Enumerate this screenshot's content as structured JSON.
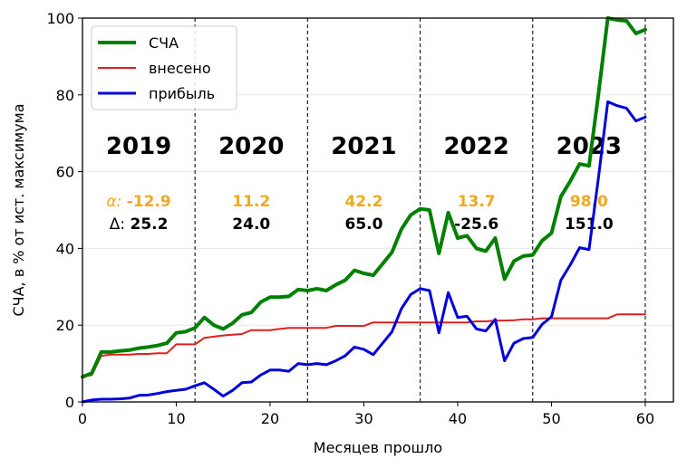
{
  "chart_data": {
    "type": "line",
    "title": "",
    "xlabel": "Месяцев прошло",
    "ylabel": "СЧА, в % от ист. максимума",
    "xlim": [
      0,
      63
    ],
    "ylim": [
      0,
      100
    ],
    "xticks": [
      0,
      10,
      20,
      30,
      40,
      50,
      60
    ],
    "yticks": [
      0,
      20,
      40,
      60,
      80,
      100
    ],
    "grid": "horizontal light",
    "legend_position": "upper left",
    "year_dividers": [
      12,
      24,
      36,
      48,
      60
    ],
    "x": [
      0,
      1,
      2,
      3,
      4,
      5,
      6,
      7,
      8,
      9,
      10,
      11,
      12,
      13,
      14,
      15,
      16,
      17,
      18,
      19,
      20,
      21,
      22,
      23,
      24,
      25,
      26,
      27,
      28,
      29,
      30,
      31,
      32,
      33,
      34,
      35,
      36,
      37,
      38,
      39,
      40,
      41,
      42,
      43,
      44,
      45,
      46,
      47,
      48,
      49,
      50,
      51,
      52,
      53,
      54,
      55,
      56,
      57,
      58,
      59,
      60
    ],
    "series": [
      {
        "name": "СЧА",
        "color": "#008000",
        "width": 4,
        "values": [
          6.5,
          7.5,
          13,
          13,
          13.3,
          13.5,
          14,
          14.3,
          14.7,
          15.3,
          18,
          18.3,
          19.3,
          22,
          20,
          19,
          20.5,
          22.7,
          23.3,
          26,
          27.3,
          27.3,
          27.5,
          29.3,
          29,
          29.5,
          29,
          30.5,
          31.7,
          34.3,
          33.5,
          33,
          36,
          39,
          45,
          48.7,
          50.3,
          50,
          38.7,
          49.3,
          42.7,
          43.3,
          40,
          39.3,
          42.7,
          32,
          36.7,
          38,
          38.3,
          42,
          44,
          53.5,
          57.5,
          62,
          61.5,
          80,
          100,
          99.5,
          99.3,
          96,
          97
        ]
      },
      {
        "name": "внесено",
        "color": "#e02020",
        "width": 2,
        "values": [
          6.5,
          7,
          12,
          12.3,
          12.3,
          12.3,
          12.5,
          12.5,
          12.7,
          12.7,
          15,
          15,
          15,
          16.7,
          17,
          17.3,
          17.5,
          17.7,
          18.7,
          18.7,
          18.7,
          19,
          19.3,
          19.3,
          19.3,
          19.3,
          19.3,
          19.8,
          19.8,
          19.8,
          19.8,
          20.7,
          20.7,
          20.7,
          20.7,
          20.7,
          20.7,
          20.7,
          20.7,
          20.7,
          20.7,
          20.7,
          21,
          21,
          21.2,
          21.2,
          21.3,
          21.5,
          21.5,
          21.8,
          21.8,
          21.8,
          21.8,
          21.8,
          21.8,
          21.8,
          21.8,
          22.8,
          22.8,
          22.8,
          22.8
        ]
      },
      {
        "name": "прибыль",
        "color": "#0000dd",
        "width": 3,
        "values": [
          0,
          0.5,
          0.7,
          0.7,
          0.8,
          1,
          1.7,
          1.8,
          2.2,
          2.7,
          3,
          3.3,
          4.2,
          5,
          3.3,
          1.5,
          3,
          5,
          5.2,
          7,
          8.3,
          8.3,
          8,
          10,
          9.7,
          10,
          9.7,
          10.7,
          12,
          14.3,
          13.7,
          12.3,
          15.3,
          18.3,
          24.3,
          28,
          29.5,
          29,
          18,
          28.5,
          22,
          22.3,
          19,
          18.5,
          21.5,
          10.7,
          15.3,
          16.5,
          16.8,
          20.2,
          22.2,
          31.7,
          35.7,
          40.2,
          39.7,
          58.2,
          78.2,
          77.2,
          76.5,
          73.2,
          74.2
        ]
      }
    ],
    "annotations": [
      {
        "year": "2019",
        "alpha_prefix": "α: ",
        "alpha": "-12.9",
        "delta_prefix": "Δ: ",
        "delta": "25.2"
      },
      {
        "year": "2020",
        "alpha_prefix": "",
        "alpha": "11.2",
        "delta_prefix": "",
        "delta": "24.0"
      },
      {
        "year": "2021",
        "alpha_prefix": "",
        "alpha": "42.2",
        "delta_prefix": "",
        "delta": "65.0"
      },
      {
        "year": "2022",
        "alpha_prefix": "",
        "alpha": "13.7",
        "delta_prefix": "",
        "delta": "-25.6"
      },
      {
        "year": "2023",
        "alpha_prefix": "",
        "alpha": "98.0",
        "delta_prefix": "",
        "delta": "151.0"
      }
    ],
    "alpha_color": "#f0a820",
    "delta_color": "#000000"
  }
}
